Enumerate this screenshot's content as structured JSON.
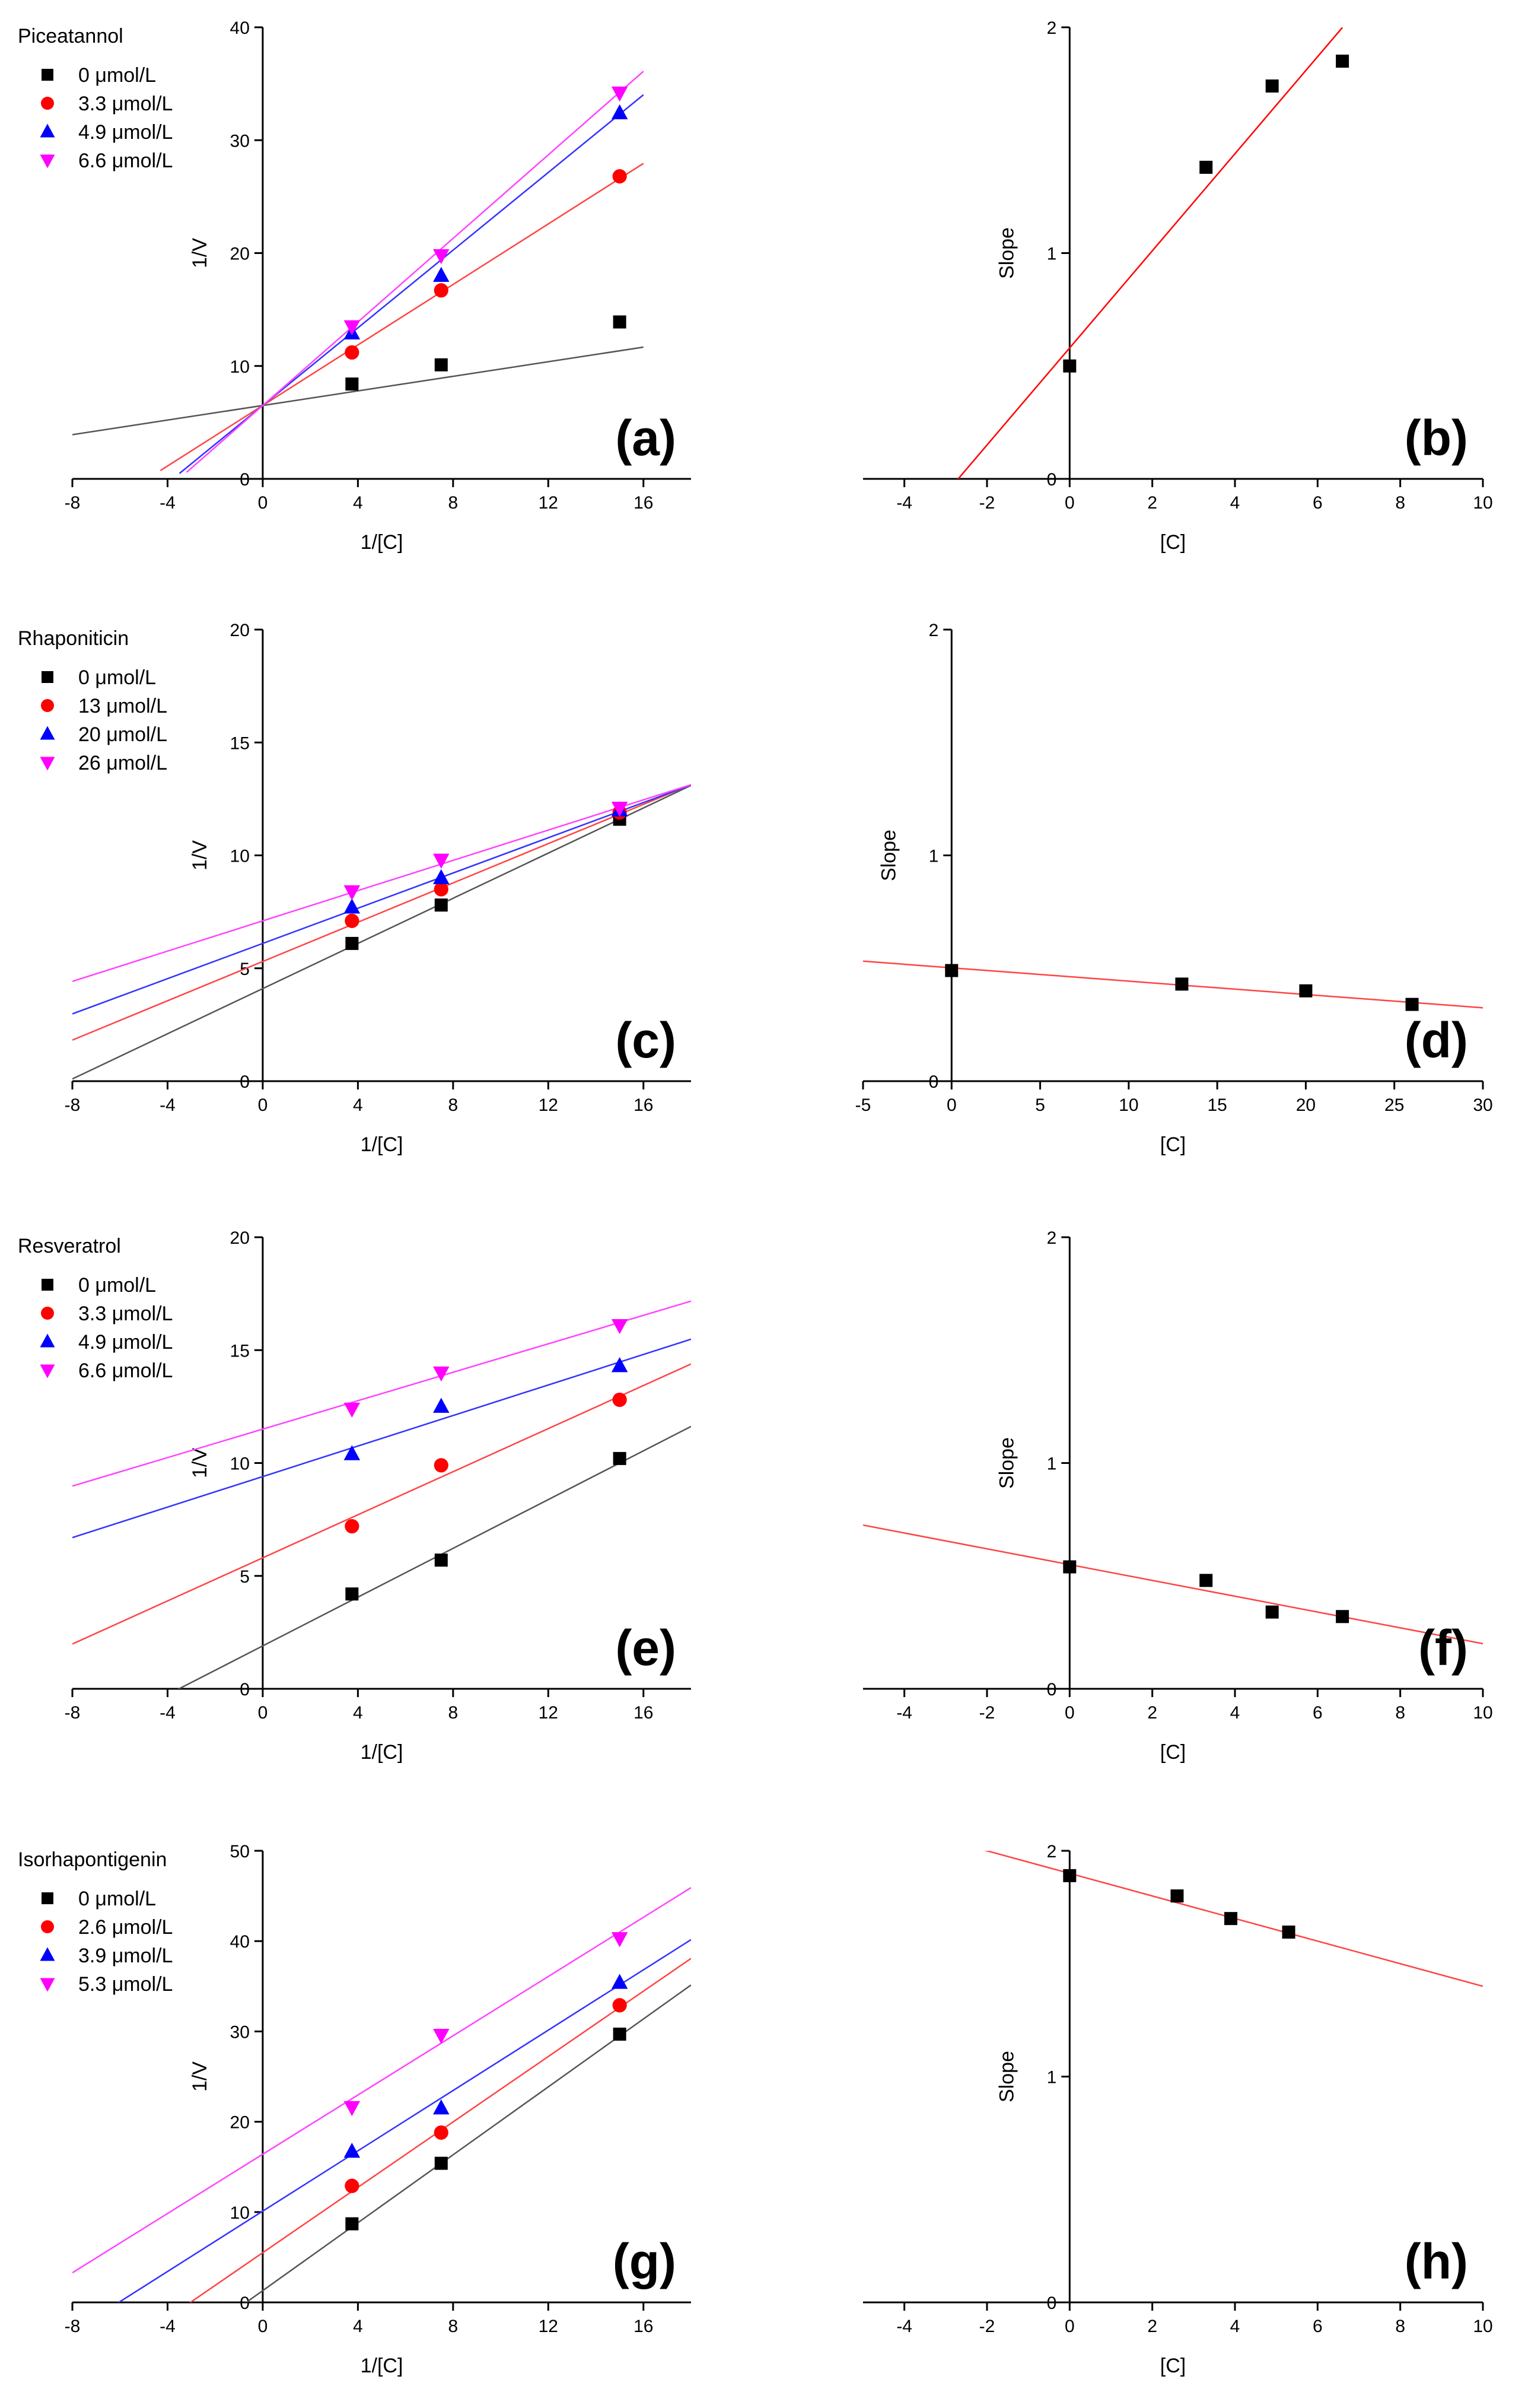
{
  "chart_data": [
    {
      "id": "a",
      "type": "scatter",
      "panel_label": "(a)",
      "xlabel": "1/[C]",
      "ylabel": "1/V",
      "xlim": [
        -8,
        18
      ],
      "ylim": [
        0,
        40
      ],
      "xticks": [
        -8,
        -4,
        0,
        4,
        8,
        12,
        16
      ],
      "yticks": [
        0,
        10,
        20,
        30,
        40
      ],
      "xtick_labels": [
        "-8",
        "-4",
        "0",
        "4",
        "8",
        "12",
        "16"
      ],
      "ytick_labels": [
        "0",
        "10",
        "20",
        "30",
        "40"
      ],
      "legend_title": "Piceatannol",
      "legend_position": "top-left",
      "series": [
        {
          "name": "0 μmol/L",
          "marker": "square",
          "color": "#000000",
          "line_color": "#555555",
          "x": [
            3.75,
            7.5,
            15
          ],
          "y": [
            8.4,
            10.1,
            13.9
          ],
          "fit": {
            "x0": -8,
            "x1": 16,
            "slope": 0.323,
            "intercept": 6.5
          }
        },
        {
          "name": "3.3 μmol/L",
          "marker": "circle",
          "color": "#ff0000",
          "line_color": "#ff4444",
          "x": [
            3.75,
            7.5,
            15
          ],
          "y": [
            11.2,
            16.7,
            26.8
          ],
          "fit": {
            "x0": -4.3,
            "x1": 16,
            "slope": 1.34,
            "intercept": 6.5
          }
        },
        {
          "name": "4.9 μmol/L",
          "marker": "triangle-up",
          "color": "#0000ff",
          "line_color": "#3333ff",
          "x": [
            3.75,
            7.5,
            15
          ],
          "y": [
            12.9,
            18.0,
            32.4
          ],
          "fit": {
            "x0": -3.5,
            "x1": 16,
            "slope": 1.72,
            "intercept": 6.5
          }
        },
        {
          "name": "6.6 μmol/L",
          "marker": "triangle-down",
          "color": "#ff00ff",
          "line_color": "#ff44ff",
          "x": [
            3.75,
            7.5,
            15
          ],
          "y": [
            13.5,
            19.8,
            34.2
          ],
          "fit": {
            "x0": -3.2,
            "x1": 16,
            "slope": 1.85,
            "intercept": 6.5
          }
        }
      ]
    },
    {
      "id": "b",
      "type": "scatter",
      "panel_label": "(b)",
      "xlabel": "[C]",
      "ylabel": "Slope",
      "xlim": [
        -5,
        10
      ],
      "ylim": [
        0,
        2
      ],
      "xticks": [
        -4,
        -2,
        0,
        2,
        4,
        6,
        8,
        10
      ],
      "yticks": [
        0,
        1,
        2
      ],
      "xtick_labels": [
        "-4",
        "-2",
        "0",
        "2",
        "4",
        "6",
        "8",
        "10"
      ],
      "ytick_labels": [
        "0",
        "1",
        "2"
      ],
      "legend_title": "",
      "series": [
        {
          "name": "",
          "marker": "square",
          "color": "#000000",
          "line_color": "#ff0000",
          "x": [
            0,
            3.3,
            4.9,
            6.6
          ],
          "y": [
            0.5,
            1.38,
            1.74,
            1.85
          ],
          "fit": {
            "x0": -2.7,
            "x1": 6.6,
            "slope": 0.215,
            "intercept": 0.58
          }
        }
      ]
    },
    {
      "id": "c",
      "type": "scatter",
      "panel_label": "(c)",
      "xlabel": "1/[C]",
      "ylabel": "1/V",
      "xlim": [
        -8,
        18
      ],
      "ylim": [
        0,
        20
      ],
      "xticks": [
        -8,
        -4,
        0,
        4,
        8,
        12,
        16
      ],
      "yticks": [
        0,
        5,
        10,
        15,
        20
      ],
      "xtick_labels": [
        "-8",
        "-4",
        "0",
        "4",
        "8",
        "12",
        "16"
      ],
      "ytick_labels": [
        "0",
        "5",
        "10",
        "15",
        "20"
      ],
      "legend_title": "Rhaponiticin",
      "legend_position": "top-left",
      "series": [
        {
          "name": "0 μmol/L",
          "marker": "square",
          "color": "#000000",
          "line_color": "#555555",
          "x": [
            3.75,
            7.5,
            15
          ],
          "y": [
            6.1,
            7.8,
            11.6
          ],
          "fit": {
            "x0": -8,
            "x1": 18,
            "slope": 0.5,
            "intercept": 4.1
          }
        },
        {
          "name": "13 μmol/L",
          "marker": "circle",
          "color": "#ff0000",
          "line_color": "#ff4444",
          "x": [
            3.75,
            7.5,
            15
          ],
          "y": [
            7.1,
            8.5,
            11.9
          ],
          "fit": {
            "x0": -8,
            "x1": 18,
            "slope": 0.435,
            "intercept": 5.3
          }
        },
        {
          "name": "20 μmol/L",
          "marker": "triangle-up",
          "color": "#0000ff",
          "line_color": "#3333ff",
          "x": [
            3.75,
            7.5,
            15
          ],
          "y": [
            7.7,
            9.0,
            12.0
          ],
          "fit": {
            "x0": -8,
            "x1": 18,
            "slope": 0.39,
            "intercept": 6.1
          }
        },
        {
          "name": "26 μmol/L",
          "marker": "triangle-down",
          "color": "#ff00ff",
          "line_color": "#ff44ff",
          "x": [
            3.75,
            7.5,
            15
          ],
          "y": [
            8.4,
            9.8,
            12.1
          ],
          "fit": {
            "x0": -8,
            "x1": 18,
            "slope": 0.335,
            "intercept": 7.1
          }
        }
      ]
    },
    {
      "id": "d",
      "type": "scatter",
      "panel_label": "(d)",
      "xlabel": "[C]",
      "ylabel": "Slope",
      "xlim": [
        -5,
        30
      ],
      "ylim": [
        0,
        2
      ],
      "xticks": [
        -5,
        0,
        5,
        10,
        15,
        20,
        25,
        30
      ],
      "yticks": [
        0,
        1,
        2
      ],
      "xtick_labels": [
        "-5",
        "0",
        "5",
        "10",
        "15",
        "20",
        "25",
        "30"
      ],
      "ytick_labels": [
        "0",
        "1",
        "2"
      ],
      "legend_title": "",
      "series": [
        {
          "name": "",
          "marker": "square",
          "color": "#000000",
          "line_color": "#ff4444",
          "x": [
            0,
            13,
            20,
            26
          ],
          "y": [
            0.49,
            0.43,
            0.4,
            0.34
          ],
          "fit": {
            "x0": -5,
            "x1": 30,
            "slope": -0.0059,
            "intercept": 0.502
          }
        }
      ]
    },
    {
      "id": "e",
      "type": "scatter",
      "panel_label": "(e)",
      "xlabel": "1/[C]",
      "ylabel": "1/V",
      "xlim": [
        -8,
        18
      ],
      "ylim": [
        0,
        20
      ],
      "xticks": [
        -8,
        -4,
        0,
        4,
        8,
        12,
        16
      ],
      "yticks": [
        0,
        5,
        10,
        15,
        20
      ],
      "xtick_labels": [
        "-8",
        "-4",
        "0",
        "4",
        "8",
        "12",
        "16"
      ],
      "ytick_labels": [
        "0",
        "5",
        "10",
        "15",
        "20"
      ],
      "legend_title": "Resveratrol",
      "legend_position": "top-left",
      "series": [
        {
          "name": "0 μmol/L",
          "marker": "square",
          "color": "#000000",
          "line_color": "#555555",
          "x": [
            3.75,
            7.5,
            15
          ],
          "y": [
            4.2,
            5.7,
            10.2
          ],
          "fit": {
            "x0": -3.7,
            "x1": 18,
            "slope": 0.54,
            "intercept": 1.9
          }
        },
        {
          "name": "3.3 μmol/L",
          "marker": "circle",
          "color": "#ff0000",
          "line_color": "#ff4444",
          "x": [
            3.75,
            7.5,
            15
          ],
          "y": [
            7.2,
            9.9,
            12.8
          ],
          "fit": {
            "x0": -8,
            "x1": 18,
            "slope": 0.477,
            "intercept": 5.8
          }
        },
        {
          "name": "4.9 μmol/L",
          "marker": "triangle-up",
          "color": "#0000ff",
          "line_color": "#3333ff",
          "x": [
            3.75,
            7.5,
            15
          ],
          "y": [
            10.4,
            12.5,
            14.3
          ],
          "fit": {
            "x0": -8,
            "x1": 18,
            "slope": 0.338,
            "intercept": 9.4
          }
        },
        {
          "name": "6.6 μmol/L",
          "marker": "triangle-down",
          "color": "#ff00ff",
          "line_color": "#ff44ff",
          "x": [
            3.75,
            7.5,
            15
          ],
          "y": [
            12.4,
            14.0,
            16.1
          ],
          "fit": {
            "x0": -8,
            "x1": 18,
            "slope": 0.315,
            "intercept": 11.5
          }
        }
      ]
    },
    {
      "id": "f",
      "type": "scatter",
      "panel_label": "(f)",
      "xlabel": "[C]",
      "ylabel": "Slope",
      "xlim": [
        -5,
        10
      ],
      "ylim": [
        0,
        2
      ],
      "xticks": [
        -4,
        -2,
        0,
        2,
        4,
        6,
        8,
        10
      ],
      "yticks": [
        0,
        1,
        2
      ],
      "xtick_labels": [
        "-4",
        "-2",
        "0",
        "2",
        "4",
        "6",
        "8",
        "10"
      ],
      "ytick_labels": [
        "0",
        "1",
        "2"
      ],
      "legend_title": "",
      "series": [
        {
          "name": "",
          "marker": "square",
          "color": "#000000",
          "line_color": "#ff4444",
          "x": [
            0,
            3.3,
            4.9,
            6.6
          ],
          "y": [
            0.54,
            0.48,
            0.34,
            0.32
          ],
          "fit": {
            "x0": -5,
            "x1": 10,
            "slope": -0.035,
            "intercept": 0.55
          }
        }
      ]
    },
    {
      "id": "g",
      "type": "scatter",
      "panel_label": "(g)",
      "xlabel": "1/[C]",
      "ylabel": "1/V",
      "xlim": [
        -8,
        18
      ],
      "ylim": [
        0,
        50
      ],
      "xticks": [
        -8,
        -4,
        0,
        4,
        8,
        12,
        16
      ],
      "yticks": [
        0,
        10,
        20,
        30,
        40,
        50
      ],
      "xtick_labels": [
        "-8",
        "-4",
        "0",
        "4",
        "8",
        "12",
        "16"
      ],
      "ytick_labels": [
        "0",
        "10",
        "20",
        "30",
        "40",
        "50"
      ],
      "legend_title": "Isorhapontigenin",
      "legend_position": "top-left",
      "series": [
        {
          "name": "0 μmol/L",
          "marker": "square",
          "color": "#000000",
          "line_color": "#555555",
          "x": [
            3.75,
            7.5,
            15
          ],
          "y": [
            8.7,
            15.4,
            29.7
          ],
          "fit": {
            "x0": -0.9,
            "x1": 18,
            "slope": 1.88,
            "intercept": 1.3
          }
        },
        {
          "name": "2.6 μmol/L",
          "marker": "circle",
          "color": "#ff0000",
          "line_color": "#ff4444",
          "x": [
            3.75,
            7.5,
            15
          ],
          "y": [
            12.9,
            18.8,
            32.9
          ],
          "fit": {
            "x0": -3.1,
            "x1": 18,
            "slope": 1.81,
            "intercept": 5.5
          }
        },
        {
          "name": "3.9 μmol/L",
          "marker": "triangle-up",
          "color": "#0000ff",
          "line_color": "#3333ff",
          "x": [
            3.75,
            7.5,
            15
          ],
          "y": [
            16.7,
            21.5,
            35.4
          ],
          "fit": {
            "x0": -6.1,
            "x1": 18,
            "slope": 1.67,
            "intercept": 10.1
          }
        },
        {
          "name": "5.3 μmol/L",
          "marker": "triangle-down",
          "color": "#ff00ff",
          "line_color": "#ff44ff",
          "x": [
            3.75,
            7.5,
            15
          ],
          "y": [
            21.6,
            29.6,
            40.3
          ],
          "fit": {
            "x0": -8,
            "x1": 18,
            "slope": 1.64,
            "intercept": 16.4
          }
        }
      ]
    },
    {
      "id": "h",
      "type": "scatter",
      "panel_label": "(h)",
      "xlabel": "[C]",
      "ylabel": "Slope",
      "xlim": [
        -5,
        10
      ],
      "ylim": [
        0,
        2
      ],
      "xticks": [
        -4,
        -2,
        0,
        2,
        4,
        6,
        8,
        10
      ],
      "yticks": [
        0,
        1,
        2
      ],
      "xtick_labels": [
        "-4",
        "-2",
        "0",
        "2",
        "4",
        "6",
        "8",
        "10"
      ],
      "ytick_labels": [
        "0",
        "1",
        "2"
      ],
      "legend_title": "",
      "series": [
        {
          "name": "",
          "marker": "square",
          "color": "#000000",
          "line_color": "#ff4444",
          "x": [
            0,
            2.6,
            3.9,
            5.3
          ],
          "y": [
            1.89,
            1.8,
            1.7,
            1.64
          ],
          "fit": {
            "x0": -2.3,
            "x1": 10,
            "slope": -0.05,
            "intercept": 1.9
          }
        }
      ]
    }
  ]
}
